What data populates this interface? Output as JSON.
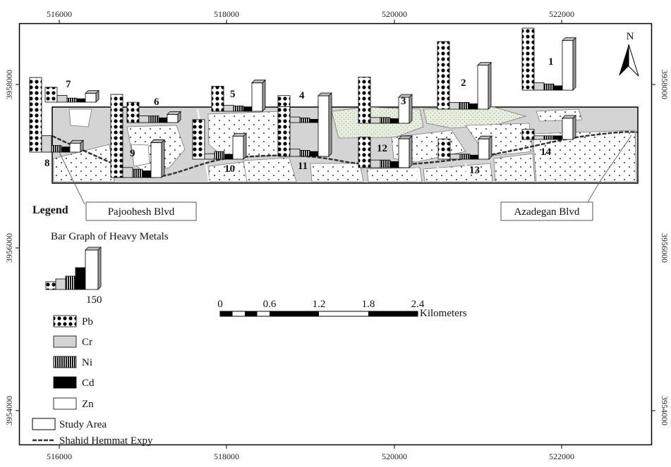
{
  "map": {
    "x_ticks": [
      "516000",
      "518000",
      "520000",
      "522000"
    ],
    "y_ticks": [
      "3958000",
      "3956000",
      "3954000"
    ],
    "north_label": "N",
    "road_labels": [
      {
        "text": "Pajoohesh Blvd"
      },
      {
        "text": "Azadegan Blvd"
      }
    ],
    "scale_bar": {
      "ticks": [
        "0",
        "0.6",
        "1.2",
        "1.8",
        "2.4"
      ],
      "unit": "Kilometers"
    }
  },
  "legend": {
    "title": "Legend",
    "bar_graph_title": "Bar Graph of Heavy Metals",
    "bar_graph_value": "150",
    "metals": [
      "Pb",
      "Cr",
      "Ni",
      "Cd",
      "Zn"
    ],
    "study_area": "Study Area",
    "expressway": "Shahid Hemmat Expy"
  },
  "sites": [
    {
      "id": "1",
      "pb": 1.0,
      "cr": 0.12,
      "ni": 0.1,
      "cd": 0.07,
      "zn": 0.8
    },
    {
      "id": "2",
      "pb": 1.0,
      "cr": 0.1,
      "ni": 0.1,
      "cd": 0.08,
      "zn": 0.65
    },
    {
      "id": "3",
      "pb": 0.8,
      "cr": 0.1,
      "ni": 0.1,
      "cd": 0.08,
      "zn": 0.45
    },
    {
      "id": "4",
      "pb": 0.58,
      "cr": 0.12,
      "ni": 0.1,
      "cd": 0.07,
      "zn": 0.45
    },
    {
      "id": "5",
      "pb": 0.37,
      "cr": 0.09,
      "ni": 0.08,
      "cd": 0.06,
      "zn": 0.42
    },
    {
      "id": "6",
      "pb": 0.3,
      "cr": 0.1,
      "ni": 0.1,
      "cd": 0.07,
      "zn": 0.12
    },
    {
      "id": "7",
      "pb": 0.22,
      "cr": 0.1,
      "ni": 0.06,
      "cd": 0.05,
      "zn": 0.13
    },
    {
      "id": "8",
      "pb": 1.0,
      "cr": 0.22,
      "ni": 0.09,
      "cd": 0.07,
      "zn": 0.12
    },
    {
      "id": "9",
      "pb": 1.0,
      "cr": 0.12,
      "ni": 0.1,
      "cd": 0.08,
      "zn": 0.42
    },
    {
      "id": "10",
      "pb": 0.72,
      "cr": 0.1,
      "ni": 0.14,
      "cd": 0.09,
      "zn": 0.42
    },
    {
      "id": "11",
      "pb": 0.82,
      "cr": 0.12,
      "ni": 0.1,
      "cd": 0.08,
      "zn": 1.0
    },
    {
      "id": "12",
      "pb": 0.4,
      "cr": 0.1,
      "ni": 0.1,
      "cd": 0.08,
      "zn": 0.38
    },
    {
      "id": "13",
      "pb": 0.4,
      "cr": 0.1,
      "ni": 0.1,
      "cd": 0.08,
      "zn": 0.4
    },
    {
      "id": "14",
      "pb": 0.28,
      "cr": 0.1,
      "ni": 0.1,
      "cd": 0.1,
      "zn": 0.58
    }
  ]
}
